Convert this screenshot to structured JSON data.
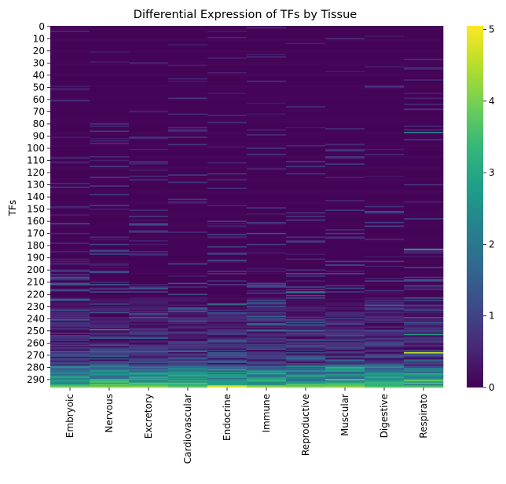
{
  "chart_data": {
    "type": "heatmap",
    "title": "Differential Expression of TFs by Tissue",
    "xlabel": "",
    "ylabel": "TFs",
    "categories": [
      "Embryoic",
      "Nervous",
      "Excretory",
      "Cardiovascular",
      "Endocrine",
      "Immune",
      "Reproductive",
      "Muscular",
      "Digestive",
      "Respirato"
    ],
    "y_tick_labels": [
      "0",
      "10",
      "20",
      "30",
      "40",
      "50",
      "60",
      "70",
      "80",
      "90",
      "100",
      "110",
      "120",
      "130",
      "140",
      "150",
      "160",
      "170",
      "180",
      "190",
      "200",
      "210",
      "220",
      "230",
      "240",
      "250",
      "260",
      "270",
      "280",
      "290"
    ],
    "row_count": 297,
    "row_range": [
      0,
      296
    ],
    "grid": false,
    "colormap": "viridis",
    "colorbar": {
      "vmin": 0,
      "vmax": 5.05,
      "ticks": [
        "0",
        "1",
        "2",
        "3",
        "4",
        "5"
      ],
      "tick_values": [
        0,
        1,
        2,
        3,
        4,
        5
      ],
      "colors": [
        "#440154",
        "#482878",
        "#3e4a89",
        "#31688e",
        "#26828e",
        "#1f9e89",
        "#35b779",
        "#6ece58",
        "#b5de2b",
        "#fde725"
      ]
    },
    "row_sort": "ascending by total expression; most rows near 0 with sparse stripes, bottom rows highest",
    "last_row_values": [
      4.1,
      4.2,
      4.3,
      3.9,
      5.0,
      4.4,
      4.2,
      4.3,
      3.8,
      3.8
    ],
    "highlight_cells": [
      {
        "row": 87,
        "col": 9,
        "value": 2.4
      },
      {
        "row": 183,
        "col": 9,
        "value": 3.1
      },
      {
        "row": 218,
        "col": 6,
        "value": 2.6
      },
      {
        "row": 228,
        "col": 4,
        "value": 2.5
      },
      {
        "row": 249,
        "col": 1,
        "value": 2.8
      },
      {
        "row": 253,
        "col": 9,
        "value": 2.9
      },
      {
        "row": 268,
        "col": 9,
        "value": 4.6
      },
      {
        "row": 280,
        "col": 7,
        "value": 3.2
      },
      {
        "row": 282,
        "col": 4,
        "value": 3.0
      },
      {
        "row": 290,
        "col": 7,
        "value": 3.8
      },
      {
        "row": 291,
        "col": 9,
        "value": 4.0
      }
    ]
  }
}
